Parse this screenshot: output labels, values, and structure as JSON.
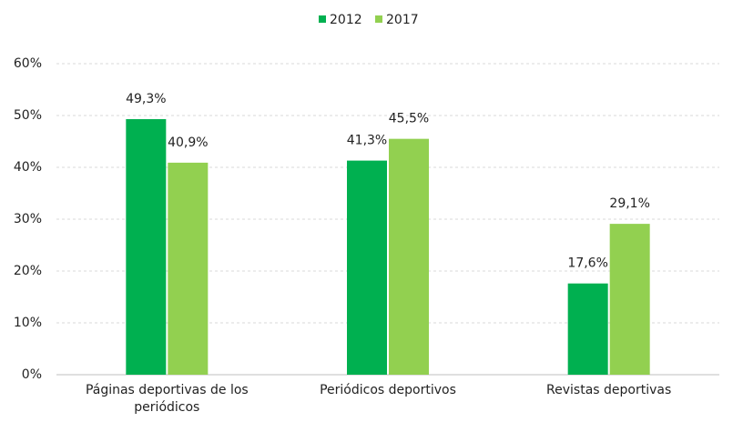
{
  "chart_data": {
    "type": "bar",
    "categories": [
      "Páginas deportivas de los periódicos",
      "Periódicos deportivos",
      "Revistas deportivas"
    ],
    "series": [
      {
        "name": "2012",
        "color": "#00b050",
        "values": [
          49.3,
          41.3,
          17.6
        ],
        "value_labels": [
          "49,3%",
          "41,3%",
          "17,6%"
        ]
      },
      {
        "name": "2017",
        "color": "#92d050",
        "values": [
          40.9,
          45.5,
          29.1
        ],
        "value_labels": [
          "40,9%",
          "45,5%",
          "29,1%"
        ]
      }
    ],
    "ylim": [
      0,
      60
    ],
    "yticks": [
      {
        "value": 0,
        "label": "0%"
      },
      {
        "value": 10,
        "label": "10%"
      },
      {
        "value": 20,
        "label": "20%"
      },
      {
        "value": 30,
        "label": "30%"
      },
      {
        "value": 40,
        "label": "40%"
      },
      {
        "value": 50,
        "label": "50%"
      },
      {
        "value": 60,
        "label": "60%"
      }
    ],
    "grid": true,
    "legend": "top"
  }
}
